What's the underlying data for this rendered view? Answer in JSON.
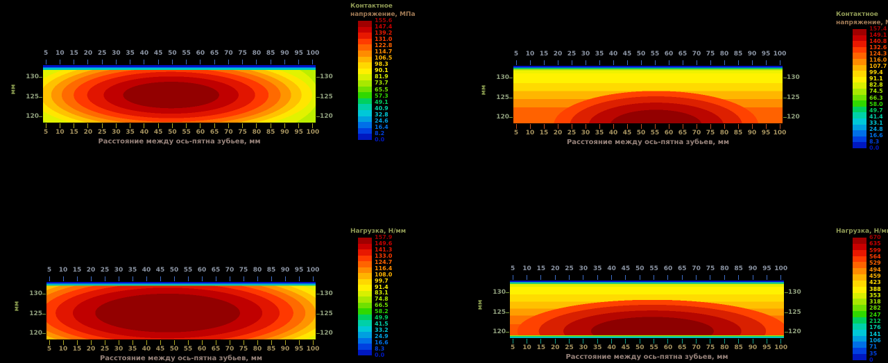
{
  "background": "#000000",
  "band_colors": [
    "#a00000",
    "#c80000",
    "#e81800",
    "#ff3c00",
    "#ff6400",
    "#ff8c00",
    "#ffb400",
    "#ffd800",
    "#fff000",
    "#d8f000",
    "#a8e800",
    "#70e000",
    "#30d800",
    "#00d060",
    "#00d0a8",
    "#00c8d8",
    "#00a0e0",
    "#0070e8",
    "#0040e0",
    "#0018c0"
  ],
  "plots": [
    {
      "id": "top-left",
      "xlabel": "Расстояние между ось-пятна зубьев, мм",
      "ylabel": "мм",
      "x_ticks": [
        5,
        10,
        15,
        20,
        25,
        30,
        35,
        40,
        45,
        50,
        55,
        60,
        65,
        70,
        75,
        80,
        85,
        90,
        95,
        100
      ],
      "y_ticks": [
        130,
        125,
        120
      ],
      "colorbar": {
        "title_lines": [
          "Контактное",
          "напряжение, МПа"
        ],
        "labels": [
          "155.6",
          "147.4",
          "139.2",
          "131.0",
          "122.8",
          "114.7",
          "106.5",
          "98.3",
          "90.1",
          "81.9",
          "73.7",
          "65.5",
          "57.3",
          "49.1",
          "40.9",
          "32.8",
          "24.6",
          "16.4",
          "8.2",
          "0.0"
        ]
      }
    },
    {
      "id": "top-right",
      "xlabel": "Расстояние между ось-пятна зубьев, мм",
      "ylabel": "мм",
      "x_ticks": [
        5,
        10,
        15,
        20,
        25,
        30,
        35,
        40,
        45,
        50,
        55,
        60,
        65,
        70,
        75,
        80,
        85,
        90,
        95,
        100
      ],
      "y_ticks": [
        130,
        125,
        120
      ],
      "colorbar": {
        "title_lines": [
          "Контактное",
          "напряжение, МПа"
        ],
        "labels": [
          "157.4",
          "149.1",
          "140.8",
          "132.6",
          "124.3",
          "116.0",
          "107.7",
          "99.4",
          "91.1",
          "82.8",
          "74.5",
          "66.3",
          "58.0",
          "49.7",
          "41.4",
          "33.1",
          "24.8",
          "16.6",
          "8.3",
          "0.0"
        ]
      }
    },
    {
      "id": "bottom-left",
      "xlabel": "Расстояние между ось-пятна зубьев, мм",
      "ylabel": "мм",
      "x_ticks": [
        5,
        10,
        15,
        20,
        25,
        30,
        35,
        40,
        45,
        50,
        55,
        60,
        65,
        70,
        75,
        80,
        85,
        90,
        95,
        100
      ],
      "y_ticks": [
        130,
        125,
        120
      ],
      "colorbar": {
        "title_lines": [
          "Нагрузка, Н/мм"
        ],
        "labels": [
          "157.9",
          "149.6",
          "141.3",
          "133.0",
          "124.7",
          "116.4",
          "108.0",
          "99.7",
          "91.4",
          "83.1",
          "74.8",
          "66.5",
          "58.2",
          "49.9",
          "41.5",
          "33.2",
          "24.9",
          "16.6",
          "8.3",
          "0.0"
        ]
      }
    },
    {
      "id": "bottom-right",
      "xlabel": "Расстояние между ось-пятна зубьев, мм",
      "ylabel": "мм",
      "x_ticks": [
        5,
        10,
        15,
        20,
        25,
        30,
        35,
        40,
        45,
        50,
        55,
        60,
        65,
        70,
        75,
        80,
        85,
        90,
        95,
        100
      ],
      "y_ticks": [
        130,
        125,
        120
      ],
      "colorbar": {
        "title_lines": [
          "Нагрузка, Н/мм"
        ],
        "labels": [
          "670",
          "635",
          "599",
          "564",
          "529",
          "494",
          "459",
          "423",
          "388",
          "353",
          "318",
          "282",
          "247",
          "212",
          "176",
          "141",
          "106",
          "71",
          "35",
          "0"
        ]
      }
    }
  ],
  "chart_data": [
    {
      "type": "heatmap",
      "position": "top-left",
      "title": "Контактное напряжение, МПа",
      "xlabel": "Расстояние между ось-пятна зубьев, мм",
      "ylabel": "мм",
      "x_range": [
        5,
        100
      ],
      "x_tick_step": 5,
      "y_ticks": [
        130,
        125,
        120
      ],
      "z_range": [
        0,
        155.6
      ],
      "colorbar_position": "right",
      "peak": {
        "x": 48,
        "y": 125,
        "value": 155
      },
      "grid_x": [
        10,
        20,
        30,
        40,
        50,
        60,
        70,
        80,
        90,
        100
      ],
      "grid_y": [
        130,
        125,
        120
      ],
      "z_estimate": [
        [
          60,
          75,
          85,
          95,
          100,
          100,
          95,
          85,
          75,
          60
        ],
        [
          75,
          100,
          125,
          145,
          152,
          152,
          148,
          135,
          110,
          80
        ],
        [
          65,
          85,
          95,
          105,
          110,
          110,
          105,
          95,
          85,
          65
        ]
      ]
    },
    {
      "type": "heatmap",
      "position": "top-right",
      "title": "Контактное напряжение, МПа",
      "xlabel": "Расстояние между ось-пятна зубьев, мм",
      "ylabel": "мм",
      "x_range": [
        5,
        100
      ],
      "x_tick_step": 5,
      "y_ticks": [
        130,
        125,
        120
      ],
      "z_range": [
        0,
        157.4
      ],
      "colorbar_position": "right",
      "peak": {
        "x": 55,
        "y": 120,
        "value": 156
      },
      "grid_x": [
        10,
        20,
        30,
        40,
        50,
        60,
        70,
        80,
        90,
        100
      ],
      "grid_y": [
        130,
        125,
        120
      ],
      "z_estimate": [
        [
          40,
          55,
          65,
          70,
          72,
          72,
          70,
          65,
          55,
          40
        ],
        [
          70,
          95,
          115,
          130,
          138,
          138,
          132,
          120,
          100,
          75
        ],
        [
          90,
          120,
          145,
          152,
          156,
          156,
          154,
          145,
          120,
          90
        ]
      ]
    },
    {
      "type": "heatmap",
      "position": "bottom-left",
      "title": "Нагрузка, Н/мм",
      "xlabel": "Расстояние между ось-пятна зубьев, мм",
      "ylabel": "мм",
      "x_range": [
        5,
        100
      ],
      "x_tick_step": 5,
      "y_ticks": [
        130,
        125,
        120
      ],
      "z_range": [
        0,
        157.9
      ],
      "colorbar_position": "right",
      "peak": {
        "x": 45,
        "y": 124,
        "value": 157
      },
      "grid_x": [
        10,
        20,
        30,
        40,
        50,
        60,
        70,
        80,
        90,
        100
      ],
      "grid_y": [
        130,
        125,
        120
      ],
      "z_estimate": [
        [
          70,
          90,
          100,
          105,
          108,
          108,
          105,
          100,
          90,
          70
        ],
        [
          90,
          125,
          145,
          152,
          156,
          156,
          152,
          148,
          130,
          95
        ],
        [
          80,
          105,
          120,
          130,
          135,
          135,
          130,
          120,
          105,
          80
        ]
      ]
    },
    {
      "type": "heatmap",
      "position": "bottom-right",
      "title": "Нагрузка, Н/мм",
      "xlabel": "Расстояние между ось-пятна зубьев, мм",
      "ylabel": "мм",
      "x_range": [
        5,
        100
      ],
      "x_tick_step": 5,
      "y_ticks": [
        130,
        125,
        120
      ],
      "z_range": [
        0,
        670
      ],
      "colorbar_position": "right",
      "peak": {
        "x": 52,
        "y": 120,
        "value": 665
      },
      "grid_x": [
        10,
        20,
        30,
        40,
        50,
        60,
        70,
        80,
        90,
        100
      ],
      "grid_y": [
        130,
        125,
        120
      ],
      "z_estimate": [
        [
          180,
          230,
          260,
          280,
          290,
          290,
          285,
          270,
          240,
          190
        ],
        [
          300,
          420,
          500,
          560,
          590,
          590,
          580,
          540,
          460,
          330
        ],
        [
          350,
          500,
          590,
          640,
          665,
          665,
          655,
          620,
          520,
          380
        ]
      ]
    }
  ]
}
